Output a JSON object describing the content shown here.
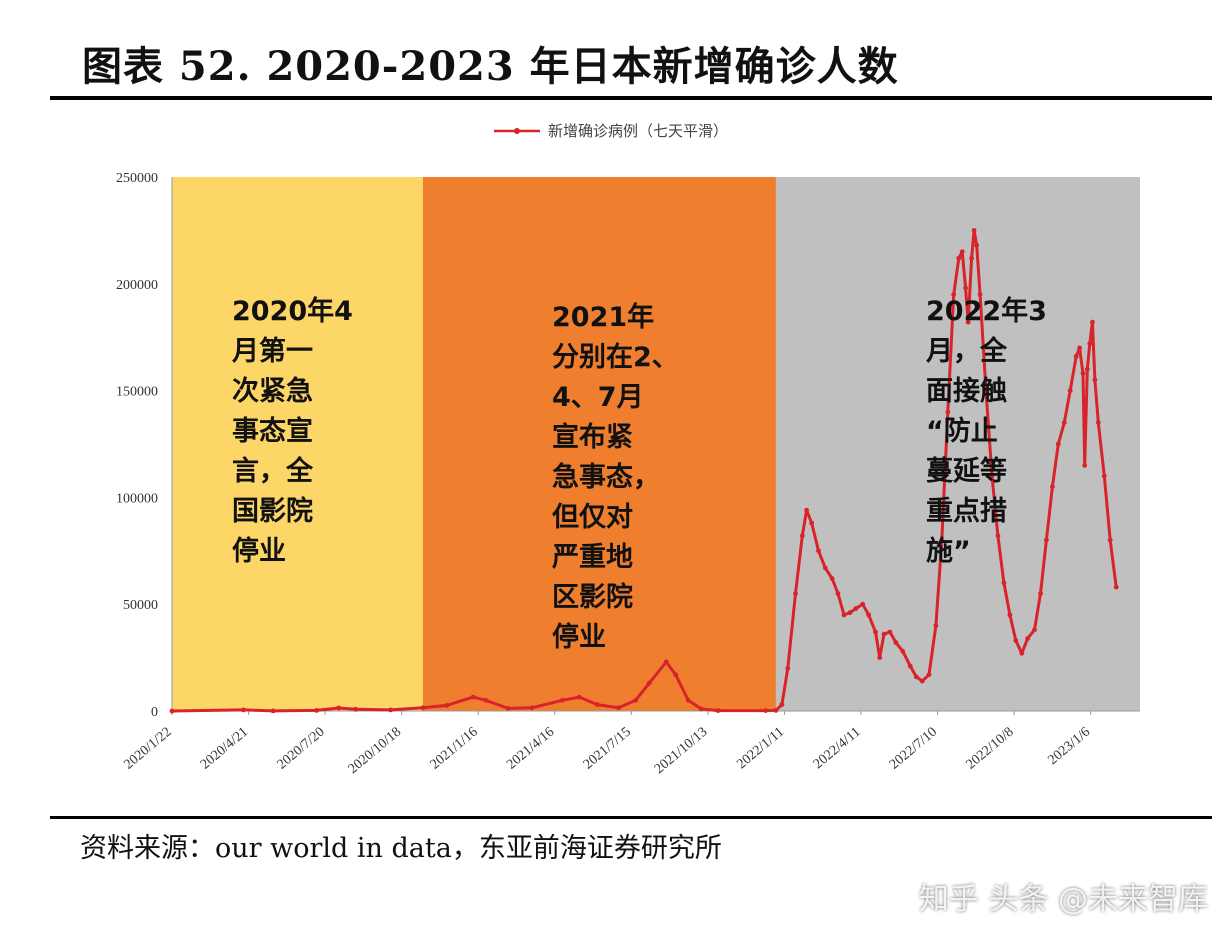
{
  "title": "图表 52. 2020-2023 年日本新增确诊人数",
  "source": "资料来源：our world in data，东亚前海证券研究所",
  "watermark": "知乎 头条 @未来智库",
  "chart_data": {
    "type": "line",
    "legend": "新增确诊病例（七天平滑）",
    "legend_position": "top-center",
    "grid": false,
    "line_color": "#d9232a",
    "ylim": [
      0,
      250000
    ],
    "yticks": [
      0,
      50000,
      100000,
      150000,
      200000,
      250000
    ],
    "xlim": [
      "2020-01-22",
      "2023-03-05"
    ],
    "xtick_labels": [
      "2020/1/22",
      "2020/4/21",
      "2020/7/20",
      "2020/10/18",
      "2021/1/16",
      "2021/4/16",
      "2021/7/15",
      "2021/10/13",
      "2022/1/11",
      "2022/4/11",
      "2022/7/10",
      "2022/10/8",
      "2023/1/6"
    ],
    "xticks": [
      "2020-01-22",
      "2020-04-21",
      "2020-07-20",
      "2020-10-18",
      "2021-01-16",
      "2021-04-16",
      "2021-07-15",
      "2021-10-13",
      "2022-01-11",
      "2022-04-11",
      "2022-07-10",
      "2022-10-08",
      "2023-01-06"
    ],
    "bands": [
      {
        "start": "2020-01-22",
        "end": "2020-11-12",
        "color": "#fdd668",
        "label_lines": [
          "2020年4",
          "月第一",
          "次紧急",
          "事态宣",
          "言，全",
          "国影院",
          "停业"
        ]
      },
      {
        "start": "2020-11-12",
        "end": "2022-01-01",
        "color": "#ef7f2e",
        "label_lines": [
          "2021年",
          "分别在2、",
          "4、7月",
          "宣布紧",
          "急事态，",
          "但仅对",
          "严重地",
          "区影院",
          "停业"
        ]
      },
      {
        "start": "2022-01-01",
        "end": "2023-03-05",
        "color": "#c0c0c0",
        "label_lines": [
          "2022年3",
          "月，全",
          "面接触",
          "“防止",
          "蔓延等",
          "重点措",
          "施”"
        ]
      }
    ],
    "series": [
      {
        "name": "新增确诊病例（七天平滑）",
        "points": [
          [
            "2020-01-22",
            0
          ],
          [
            "2020-04-15",
            500
          ],
          [
            "2020-05-20",
            50
          ],
          [
            "2020-07-10",
            300
          ],
          [
            "2020-08-05",
            1400
          ],
          [
            "2020-08-25",
            800
          ],
          [
            "2020-10-05",
            500
          ],
          [
            "2020-11-12",
            1500
          ],
          [
            "2020-12-10",
            2600
          ],
          [
            "2021-01-10",
            6500
          ],
          [
            "2021-01-25",
            5000
          ],
          [
            "2021-02-20",
            1200
          ],
          [
            "2021-03-20",
            1500
          ],
          [
            "2021-04-25",
            5000
          ],
          [
            "2021-05-15",
            6500
          ],
          [
            "2021-06-05",
            3000
          ],
          [
            "2021-06-30",
            1500
          ],
          [
            "2021-07-20",
            5000
          ],
          [
            "2021-08-05",
            13000
          ],
          [
            "2021-08-25",
            23000
          ],
          [
            "2021-09-05",
            17000
          ],
          [
            "2021-09-20",
            5000
          ],
          [
            "2021-10-05",
            1000
          ],
          [
            "2021-10-25",
            200
          ],
          [
            "2021-12-20",
            200
          ],
          [
            "2022-01-01",
            300
          ],
          [
            "2022-01-08",
            3000
          ],
          [
            "2022-01-15",
            20000
          ],
          [
            "2022-01-24",
            55000
          ],
          [
            "2022-02-01",
            82000
          ],
          [
            "2022-02-06",
            94000
          ],
          [
            "2022-02-12",
            88000
          ],
          [
            "2022-02-20",
            75000
          ],
          [
            "2022-02-28",
            67000
          ],
          [
            "2022-03-08",
            62000
          ],
          [
            "2022-03-15",
            55000
          ],
          [
            "2022-03-22",
            45000
          ],
          [
            "2022-03-29",
            46000
          ],
          [
            "2022-04-05",
            48000
          ],
          [
            "2022-04-13",
            50000
          ],
          [
            "2022-04-20",
            45000
          ],
          [
            "2022-04-28",
            37000
          ],
          [
            "2022-05-03",
            25000
          ],
          [
            "2022-05-08",
            36000
          ],
          [
            "2022-05-15",
            37000
          ],
          [
            "2022-05-22",
            32000
          ],
          [
            "2022-05-30",
            28000
          ],
          [
            "2022-06-08",
            21000
          ],
          [
            "2022-06-15",
            16000
          ],
          [
            "2022-06-22",
            14000
          ],
          [
            "2022-06-30",
            17000
          ],
          [
            "2022-07-08",
            40000
          ],
          [
            "2022-07-15",
            80000
          ],
          [
            "2022-07-22",
            140000
          ],
          [
            "2022-07-29",
            195000
          ],
          [
            "2022-08-04",
            212000
          ],
          [
            "2022-08-08",
            215000
          ],
          [
            "2022-08-12",
            198000
          ],
          [
            "2022-08-15",
            182000
          ],
          [
            "2022-08-19",
            212000
          ],
          [
            "2022-08-22",
            225000
          ],
          [
            "2022-08-25",
            218000
          ],
          [
            "2022-08-29",
            195000
          ],
          [
            "2022-09-05",
            150000
          ],
          [
            "2022-09-12",
            110000
          ],
          [
            "2022-09-19",
            82000
          ],
          [
            "2022-09-26",
            60000
          ],
          [
            "2022-10-03",
            45000
          ],
          [
            "2022-10-10",
            33000
          ],
          [
            "2022-10-17",
            27000
          ],
          [
            "2022-10-24",
            34000
          ],
          [
            "2022-11-01",
            38000
          ],
          [
            "2022-11-08",
            55000
          ],
          [
            "2022-11-15",
            80000
          ],
          [
            "2022-11-22",
            105000
          ],
          [
            "2022-11-29",
            125000
          ],
          [
            "2022-12-06",
            135000
          ],
          [
            "2022-12-13",
            150000
          ],
          [
            "2022-12-20",
            166000
          ],
          [
            "2022-12-24",
            170000
          ],
          [
            "2022-12-28",
            158000
          ],
          [
            "2022-12-30",
            115000
          ],
          [
            "2023-01-02",
            160000
          ],
          [
            "2023-01-05",
            172000
          ],
          [
            "2023-01-08",
            182000
          ],
          [
            "2023-01-11",
            155000
          ],
          [
            "2023-01-15",
            135000
          ],
          [
            "2023-01-22",
            110000
          ],
          [
            "2023-01-29",
            80000
          ],
          [
            "2023-02-05",
            58000
          ]
        ]
      }
    ]
  }
}
